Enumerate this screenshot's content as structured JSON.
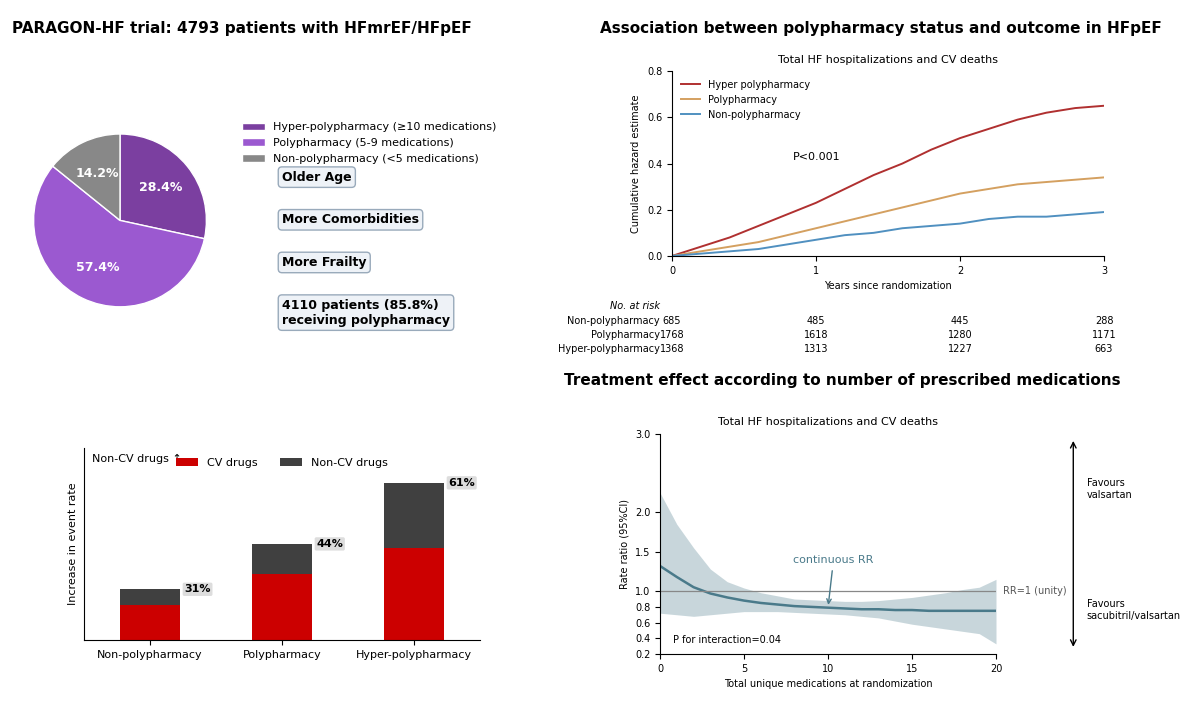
{
  "chart_data": [
    {
      "type": "pie",
      "title": "PARAGON-HF trial: 4793 patients with HFmrEF/HFpEF",
      "categories": [
        "Hyper-polypharmacy (≥10 medications)",
        "Polypharmacy (5-9 medications)",
        "Non-polypharmacy (<5 medications)"
      ],
      "values": [
        28.4,
        57.4,
        14.2
      ],
      "value_labels": [
        "28.4%",
        "57.4%",
        "14.2%"
      ],
      "colors": [
        "#7B3FA0",
        "#9B59D0",
        "#888888"
      ],
      "legend": "upper left",
      "annotations": [
        "Older Age",
        "More Comorbidities",
        "More Frailty",
        "4110 patients (85.8%)\nreceiving polypharmacy"
      ]
    },
    {
      "type": "bar",
      "stacked": true,
      "categories": [
        "Non-polypharmacy",
        "Polypharmacy",
        "Hyper-polypharmacy"
      ],
      "series": [
        {
          "name": "CV drugs",
          "color": "#CC0000",
          "values": [
            0.4,
            0.75,
            1.05
          ]
        },
        {
          "name": "Non-CV drugs",
          "color": "#404040",
          "values": [
            0.18,
            0.35,
            0.75
          ]
        }
      ],
      "ylabel": "Increase in event rate",
      "ylim": [
        0,
        2.2
      ],
      "tick_labels": "x",
      "legend": "upper center",
      "annotations": [
        {
          "text": "31%",
          "category": "Non-polypharmacy"
        },
        {
          "text": "44%",
          "category": "Polypharmacy"
        },
        {
          "text": "61%",
          "category": "Hyper-polypharmacy"
        },
        "Non-CV drugs ↑"
      ]
    },
    {
      "type": "line",
      "title": "Association between polypharmacy status and outcome in HFpEF",
      "subtitle": "Total HF hospitalizations and CV deaths",
      "xlabel": "Years since randomization",
      "ylabel": "Cumulative hazard estimate",
      "x": [
        0,
        0.1,
        0.2,
        0.4,
        0.6,
        0.8,
        1.0,
        1.2,
        1.4,
        1.6,
        1.8,
        2.0,
        2.2,
        2.4,
        2.6,
        2.8,
        3.0
      ],
      "series": [
        {
          "name": "Hyper polypharmacy",
          "color": "#B03030",
          "values": [
            0,
            0.02,
            0.04,
            0.08,
            0.13,
            0.18,
            0.23,
            0.29,
            0.35,
            0.4,
            0.46,
            0.51,
            0.55,
            0.59,
            0.62,
            0.64,
            0.65
          ]
        },
        {
          "name": "Polypharmacy",
          "color": "#D4A060",
          "values": [
            0,
            0.01,
            0.02,
            0.04,
            0.06,
            0.09,
            0.12,
            0.15,
            0.18,
            0.21,
            0.24,
            0.27,
            0.29,
            0.31,
            0.32,
            0.33,
            0.34
          ]
        },
        {
          "name": "Non-polypharmacy",
          "color": "#5090C0",
          "values": [
            0,
            0.005,
            0.01,
            0.02,
            0.03,
            0.05,
            0.07,
            0.09,
            0.1,
            0.12,
            0.13,
            0.14,
            0.16,
            0.17,
            0.17,
            0.18,
            0.19
          ]
        }
      ],
      "xlim": [
        0,
        3
      ],
      "xticks": [
        0,
        1,
        2,
        3
      ],
      "ylim": [
        0,
        0.8
      ],
      "yticks": [
        {
          "value": 0,
          "label": "0.0"
        },
        0.2,
        0.4,
        0.6,
        0.8
      ],
      "legend": "upper left",
      "annotations": [
        "P<0.001"
      ],
      "at_risk_title": "No. at risk",
      "at_risk": [
        {
          "name": "Non-polypharmacy",
          "values": [
            685,
            485,
            445,
            288
          ]
        },
        {
          "name": "Polypharmacy",
          "values": [
            1768,
            1618,
            1280,
            1171
          ]
        },
        {
          "name": "Hyper-polypharmacy",
          "values": [
            1368,
            1313,
            1227,
            663
          ]
        }
      ]
    },
    {
      "type": "line",
      "title": "Treatment effect according to number of prescribed medications",
      "subtitle": "Total HF hospitalizations and CV deaths",
      "xlabel": "Total unique medications at randomization",
      "ylabel": "Rate ratio (95%CI)",
      "x": [
        0,
        1,
        2,
        3,
        4,
        5,
        6,
        7,
        8,
        9,
        10,
        11,
        12,
        13,
        14,
        15,
        16,
        17,
        18,
        19,
        20
      ],
      "series": [
        {
          "color": "#4A7A8A",
          "values": [
            1.32,
            1.18,
            1.05,
            0.97,
            0.92,
            0.88,
            0.85,
            0.83,
            0.81,
            0.8,
            0.79,
            0.78,
            0.77,
            0.77,
            0.76,
            0.76,
            0.75,
            0.75,
            0.75,
            0.75,
            0.75
          ],
          "upper": [
            2.25,
            1.85,
            1.55,
            1.28,
            1.12,
            1.04,
            0.98,
            0.94,
            0.9,
            0.89,
            0.88,
            0.87,
            0.87,
            0.88,
            0.9,
            0.92,
            0.95,
            0.98,
            1.02,
            1.05,
            1.15
          ],
          "lower": [
            0.72,
            0.7,
            0.68,
            0.7,
            0.72,
            0.74,
            0.74,
            0.74,
            0.73,
            0.72,
            0.71,
            0.7,
            0.68,
            0.66,
            0.62,
            0.58,
            0.55,
            0.52,
            0.49,
            0.46,
            0.33
          ]
        }
      ],
      "xlim": [
        0,
        20
      ],
      "xticks": [
        0,
        5,
        10,
        15,
        20
      ],
      "ylim": [
        0.2,
        3.0
      ],
      "yticks": [
        0.2,
        0.4,
        0.6,
        0.8,
        {
          "value": 1,
          "label": "1.0"
        },
        1.5,
        {
          "value": 2,
          "label": "2.0"
        },
        {
          "value": 3,
          "label": "3.0"
        }
      ],
      "reference_line": {
        "value": 1,
        "label": "RR=1 (unity)",
        "color": "#888888"
      },
      "annotations": [
        "continuous RR",
        "P for interaction=0.04",
        "Favours\nvalsartan",
        "Favours\nsacubitril/valsartan"
      ]
    }
  ]
}
